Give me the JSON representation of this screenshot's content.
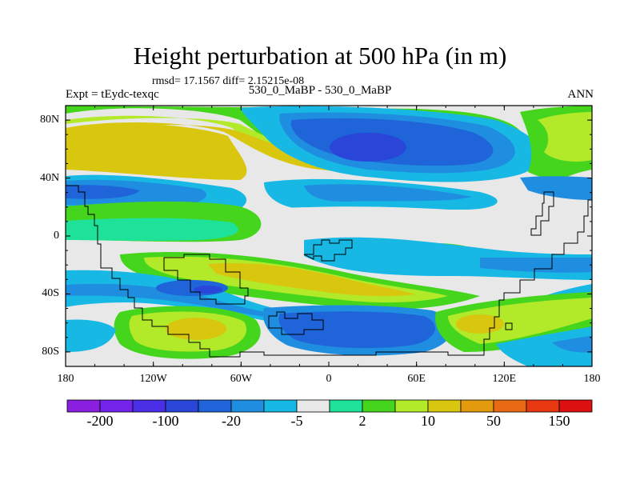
{
  "header": {
    "title": "Height perturbation at 500 hPa (in m)",
    "stats": "rmsd= 17.1567 diff= 2.15215e-08",
    "experiment": "Expt = tEydc-texqc",
    "case": "530_0_MaBP - 530_0_MaBP",
    "season": "ANN"
  },
  "map": {
    "lat_range": [
      -90,
      90
    ],
    "lon_range": [
      -180,
      180
    ],
    "lat_ticks": [
      {
        "value": 80,
        "label": "80N"
      },
      {
        "value": 40,
        "label": "40N"
      },
      {
        "value": 0,
        "label": "0"
      },
      {
        "value": -40,
        "label": "40S"
      },
      {
        "value": -80,
        "label": "80S"
      }
    ],
    "lon_ticks": [
      {
        "value": -180,
        "label": "180"
      },
      {
        "value": -120,
        "label": "120W"
      },
      {
        "value": -60,
        "label": "60W"
      },
      {
        "value": 0,
        "label": "0"
      },
      {
        "value": 60,
        "label": "60E"
      },
      {
        "value": 120,
        "label": "120E"
      },
      {
        "value": 180,
        "label": "180"
      }
    ]
  },
  "colorbar": {
    "colors": [
      "#8a1fe0",
      "#7424ea",
      "#4a2fe6",
      "#2946d8",
      "#1f64d8",
      "#1f8ee0",
      "#17b8e3",
      "#e8e8e8",
      "#1fe29a",
      "#46d51d",
      "#b2ea2a",
      "#d9c60f",
      "#e39a0c",
      "#e86a12",
      "#e83812",
      "#dc1010"
    ],
    "labels": [
      {
        "text": "-200",
        "boundary": 1
      },
      {
        "text": "-100",
        "boundary": 3
      },
      {
        "text": "-20",
        "boundary": 5
      },
      {
        "text": "-5",
        "boundary": 7
      },
      {
        "text": "2",
        "boundary": 9
      },
      {
        "text": "10",
        "boundary": 11
      },
      {
        "text": "50",
        "boundary": 13
      },
      {
        "text": "150",
        "boundary": 15
      }
    ]
  }
}
